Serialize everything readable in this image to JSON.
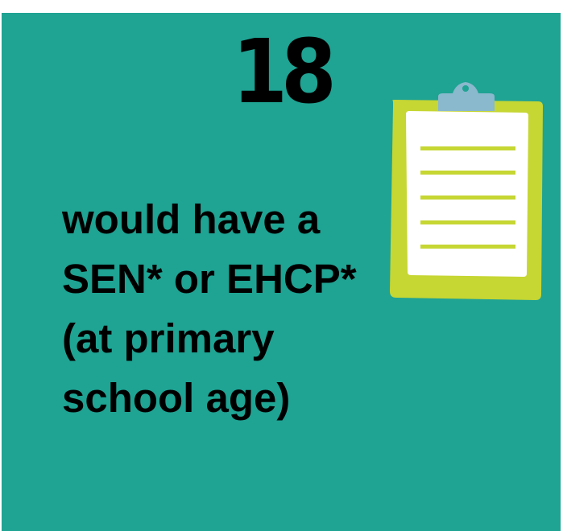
{
  "stat": {
    "number": "18",
    "lines": [
      "would have a",
      "SEN* or EHCP*",
      "(at primary",
      "school age)"
    ]
  },
  "colors": {
    "background": "#1fa393",
    "text": "#000000",
    "clipboard_board": "#c6d633",
    "clipboard_paper": "#ffffff",
    "clipboard_clip": "#8ab8cc"
  },
  "icons": {
    "clipboard": "clipboard-icon"
  }
}
